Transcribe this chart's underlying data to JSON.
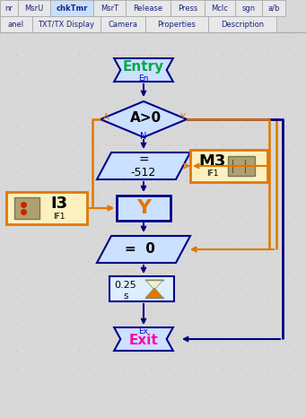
{
  "bg_color": "#d8d8d8",
  "dot_color": "#aaaaaa",
  "flow_bg": "#e8eeff",
  "light_blue_fill": "#cce0ff",
  "light_blue_fill2": "#d8e8ff",
  "orange": "#e07800",
  "dark_blue": "#000080",
  "node_border": "#00008b",
  "entry_text_color": "#00aa44",
  "entry_label_color": "#0000cc",
  "exit_text_color": "#ff00aa",
  "tab_border": "#aaaaaa",
  "tab_text": "#1a237e",
  "tab_selected_bg": "#c8e0ff",
  "tab_normal_bg": "#e8e8e8",
  "tabs_row1": [
    "nr",
    "MsrU",
    "chkTmr",
    "MsrT",
    "Release",
    "Press",
    "Mclc",
    "sgn",
    "a/b"
  ],
  "tabs_row2": [
    "anel",
    "TXT/TX Display",
    "Camera",
    "Properties",
    "Description"
  ],
  "selected_tab_r1": "chkTmr",
  "tab_widths1": [
    20,
    36,
    48,
    36,
    50,
    38,
    34,
    30,
    26
  ],
  "tab_widths2": [
    36,
    76,
    50,
    70,
    76
  ],
  "timer_fill": "#ddeeff",
  "m3_fill": "#fdf0c0",
  "i3_fill": "#fdf0c0",
  "motor_fill": "#b0a070",
  "sensor_fill": "#b0a070"
}
